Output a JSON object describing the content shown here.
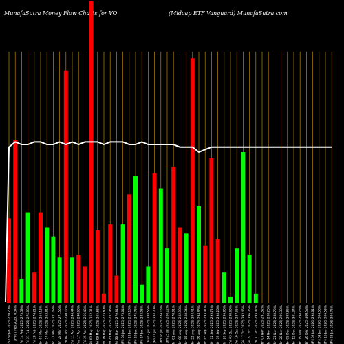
{
  "header": {
    "left_title": "MunafaSutra  Money Flow  Charts for VO",
    "right_title": "(Midcap ETF Vanguard) MunafaSutra.com"
  },
  "chart_data": {
    "type": "bar",
    "title": "MunafaSutra  Money Flow  Charts for VO (Midcap ETF Vanguard) MunafaSutra.com",
    "colors": {
      "up": "#00ff00",
      "down": "#ff0000",
      "line": "#ffffff",
      "grid": "#b8860b",
      "background": "#000000"
    },
    "categories": [
      "Thu 30 Jan 2025",
      "Fri 07 Feb 2025",
      "Fri 14 Feb 2025",
      "Fri 21 Feb 2025",
      "Fri 28 Feb 2025",
      "Fri 07 Mar 2025",
      "Fri 14 Mar 2025",
      "Fri 21 Mar 2025",
      "Fri 28 Mar 2025",
      "Fri 04 Apr 2025",
      "Fri 11 Apr 2025",
      "Thu 17 Apr 2025",
      "Fri 25 Apr 2025",
      "Fri 02 May 2025",
      "Fri 09 May 2025",
      "Fri 16 May 2025",
      "Fri 23 May 2025",
      "Fri 30 May 2025",
      "Fri 06 Jun 2025",
      "Fri 13 Jun 2025",
      "Fri 20 Jun 2025",
      "Fri 27 Jun 2025",
      "Thu 03 Jul 2025",
      "Fri 11 Jul 2025",
      "Fri 18 Jul 2025",
      "Fri 25 Jul 2025",
      "Fri 01 Aug 2025",
      "Fri 08 Aug 2025",
      "Fri 15 Aug 2025",
      "Fri 22 Aug 2025",
      "Fri 29 Aug 2025",
      "Fri 05 Sep 2025",
      "Fri 12 Sep 2025",
      "Fri 19 Sep 2025",
      "Fri 26 Sep 2025",
      "Fri 03 Oct 2025",
      "Fri 10 Oct 2025",
      "Fri 17 Oct 2025",
      "Fri 24 Oct 2025",
      "Fri 31 Oct 2025",
      "Fri 07 Nov 2025",
      "Fri 14 Nov 2025",
      "Fri 21 Nov 2025",
      "Fri 28 Nov 2025",
      "Fri 05 Dec 2025",
      "Fri 12 Dec 2025",
      "Fri 19 Dec 2025",
      "Fri 26 Dec 2025",
      "Fri 02 Jan 2026",
      "Fri 09 Jan 2026",
      "Fri 16 Jan 2026",
      "Fri 23 Jan 2026"
    ],
    "x_labels": [
      "(Thu 30 Jan 2025) 270.20%",
      "(Fri 07 Feb 2025) 0.34%",
      "(Fri 14 Feb 2025) 273.59%",
      "(Fri 21 Feb 2025) 275.93%",
      "(Fri 28 Feb 2025) 274.21%",
      "(Fri 07 Mar 2025) 264.13%",
      "(Fri 14 Mar 2025) 262.81%",
      "(Fri 21 Mar 2025) 271.48%",
      "(Fri 28 Mar 2025) 271.55%",
      "(Fri 04 Apr 2025) 240.12%",
      "(Fri 11 Apr 2025) 244.44%",
      "(Thu 17 Apr 2025) 248.60%",
      "(Fri 25 Apr 2025) 256.43%",
      "(Fri 02 May 2025) 262.31%",
      "(Fri 09 May 2025) 265.63%",
      "(Fri 16 May 2025) 275.60%",
      "(Fri 23 May 2025) 267.93%",
      "(Fri 30 May 2025) 270.81%",
      "(Fri 06 Jun 2025) 273.04%",
      "(Fri 13 Jun 2025) 269.13%",
      "(Fri 20 Jun 2025) 275.76%",
      "(Fri 27 Jun 2025) 283.03%",
      "(Thu 03 Jul 2025) 288.56%",
      "(Fri 11 Jul 2025) 284.20%",
      "(Fri 18 Jul 2025) 284.15%",
      "(Fri 25 Jul 2025) 288.12%",
      "(Fri 01 Aug 2025) 278.01%",
      "(Fri 08 Aug 2025) 282.98%",
      "(Fri 15 Aug 2025) 288.34%",
      "(Fri 22 Aug 2025) 294.41%",
      "(Fri 29 Aug 2025) 294.88%",
      "(Fri 05 Sep 2025) 293.91%",
      "(Fri 12 Sep 2025) 295.72%",
      "(Fri 19 Sep 2025) 298.26%",
      "(Fri 26 Sep 2025) 296.03%",
      "(Fri 03 Oct 2025) 298.60%",
      "(Fri 10 Oct 2025) 287.35%",
      "(Fri 17 Oct 2025) 292.46%",
      "(Fri 24 Oct 2025) 296.75%",
      "(Fri 31 Oct 2025) 295.02%",
      "(Fri 07 Nov 2025) 291.52%",
      "(Fri 14 Nov 2025) 288.26%",
      "(Fri 21 Nov 2025) 288.79%",
      "(Fri 28 Nov 2025) 296.30%",
      "(Fri 05 Dec 2025) 298.86%",
      "(Fri 12 Dec 2025) 301.34%",
      "(Fri 19 Dec 2025) 298.73%",
      "(Fri 26 Dec 2025) 300.53%",
      "(Fri 02 Jan 2026) 298.61%",
      "(Fri 09 Jan 2026) 304.58%",
      "(Fri 16 Jan 2026) 306.59%",
      "(Fri 23 Jan 2026) 304.75%"
    ],
    "bar_colors": [
      "red",
      "red",
      "green",
      "green",
      "red",
      "red",
      "green",
      "green",
      "green",
      "red",
      "green",
      "red",
      "red",
      "red",
      "red",
      "red",
      "red",
      "red",
      "green",
      "red",
      "green",
      "green",
      "green",
      "red",
      "green",
      "green",
      "red",
      "red",
      "green",
      "red",
      "green",
      "red",
      "red",
      "red",
      "green",
      "green",
      "green",
      "green",
      "green",
      "green",
      "green",
      "green",
      "red",
      "green",
      "green",
      "green",
      "red",
      "green",
      "green",
      "green",
      "green",
      "green"
    ],
    "values": [
      28,
      54,
      8,
      30,
      10,
      30,
      25,
      22,
      15,
      77,
      15,
      16,
      12,
      100,
      24,
      3,
      26,
      9,
      26,
      36,
      42,
      6,
      12,
      43,
      38,
      18,
      45,
      25,
      23,
      81,
      32,
      19,
      48,
      21,
      10,
      2,
      18,
      50,
      16,
      3,
      0,
      0,
      0,
      0,
      0,
      0,
      0,
      0,
      0,
      0,
      0,
      0
    ],
    "price_line": [
      62,
      64,
      63,
      63,
      64,
      64,
      63,
      63,
      64,
      63,
      64,
      63,
      64,
      64,
      64,
      63,
      64,
      64,
      64,
      63,
      63,
      64,
      63,
      63,
      63,
      63,
      63,
      62,
      62,
      62,
      60,
      61,
      62,
      62,
      62,
      62,
      62,
      62,
      62,
      62,
      62,
      62,
      62,
      62,
      62,
      62,
      62,
      62,
      62,
      62,
      62,
      62
    ],
    "ylim": [
      0,
      100
    ],
    "grid": true
  }
}
